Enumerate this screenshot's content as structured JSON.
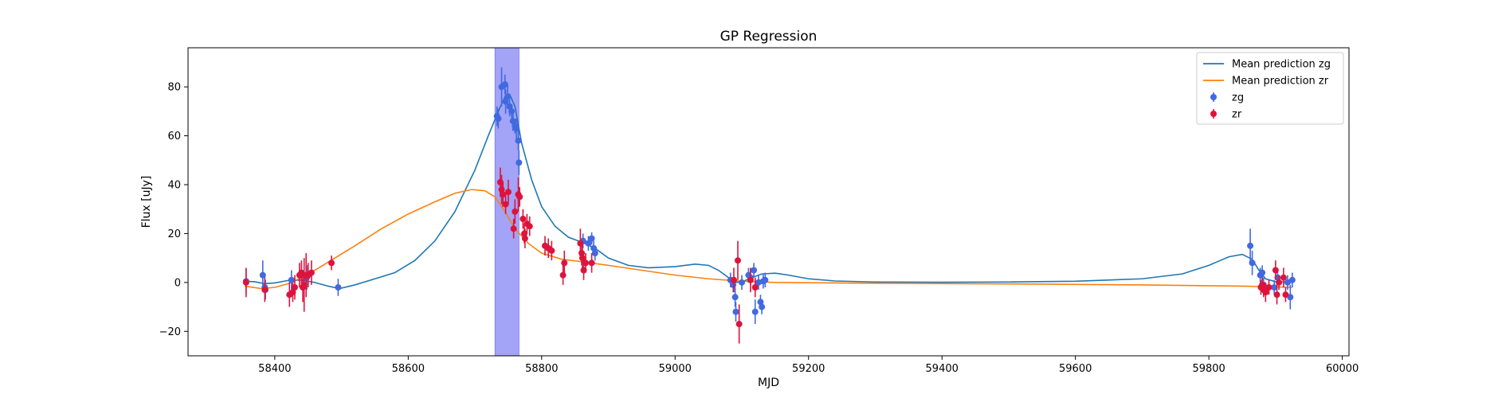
{
  "chart_data": {
    "type": "scatter",
    "title": "GP Regression",
    "xlabel": "MJD",
    "ylabel": "Flux [uJy]",
    "xlim": [
      58270,
      60010
    ],
    "ylim": [
      -30,
      96
    ],
    "xticks": [
      58400,
      58600,
      58800,
      59000,
      59200,
      59400,
      59600,
      59800,
      60000
    ],
    "yticks": [
      -20,
      0,
      20,
      40,
      60,
      80
    ],
    "grid": false,
    "legend_position": "top-right",
    "shaded_region": {
      "x0": 58730,
      "x1": 58766,
      "color": "#a3a3f7"
    },
    "series": [
      {
        "name": "Mean prediction zg",
        "kind": "line",
        "color": "#1f77b4",
        "points": [
          [
            58355,
            0.5
          ],
          [
            58370,
            0.3
          ],
          [
            58385,
            -0.5
          ],
          [
            58400,
            -0.2
          ],
          [
            58420,
            0.8
          ],
          [
            58440,
            1
          ],
          [
            58460,
            0
          ],
          [
            58480,
            -1.5
          ],
          [
            58497,
            -2.5
          ],
          [
            58520,
            -1
          ],
          [
            58550,
            1.5
          ],
          [
            58580,
            4
          ],
          [
            58610,
            9
          ],
          [
            58640,
            17
          ],
          [
            58670,
            29
          ],
          [
            58700,
            46
          ],
          [
            58720,
            60
          ],
          [
            58735,
            70
          ],
          [
            58745,
            76
          ],
          [
            58752,
            77
          ],
          [
            58760,
            72
          ],
          [
            58770,
            57
          ],
          [
            58785,
            42
          ],
          [
            58800,
            31
          ],
          [
            58820,
            23
          ],
          [
            58840,
            18.5
          ],
          [
            58860,
            16.5
          ],
          [
            58880,
            14
          ],
          [
            58900,
            10
          ],
          [
            58930,
            7
          ],
          [
            58960,
            6
          ],
          [
            59000,
            6.5
          ],
          [
            59030,
            7.5
          ],
          [
            59050,
            7
          ],
          [
            59065,
            5
          ],
          [
            59080,
            2
          ],
          [
            59090,
            0
          ],
          [
            59100,
            0.2
          ],
          [
            59115,
            2
          ],
          [
            59130,
            3.5
          ],
          [
            59150,
            3.8
          ],
          [
            59170,
            3
          ],
          [
            59200,
            1.5
          ],
          [
            59240,
            0.6
          ],
          [
            59300,
            0.2
          ],
          [
            59400,
            0.1
          ],
          [
            59500,
            0.2
          ],
          [
            59600,
            0.5
          ],
          [
            59700,
            1.5
          ],
          [
            59760,
            3.5
          ],
          [
            59800,
            7
          ],
          [
            59830,
            10.5
          ],
          [
            59850,
            11.5
          ],
          [
            59865,
            9.5
          ],
          [
            59875,
            5
          ],
          [
            59885,
            1.5
          ],
          [
            59900,
            0.3
          ],
          [
            59925,
            0
          ]
        ]
      },
      {
        "name": "Mean prediction zr",
        "kind": "line",
        "color": "#ff7f0e",
        "points": [
          [
            58355,
            -1.5
          ],
          [
            58380,
            -2.5
          ],
          [
            58400,
            -2
          ],
          [
            58420,
            -0.5
          ],
          [
            58440,
            2
          ],
          [
            58460,
            5
          ],
          [
            58490,
            10
          ],
          [
            58520,
            15
          ],
          [
            58560,
            22
          ],
          [
            58600,
            28
          ],
          [
            58640,
            33
          ],
          [
            58670,
            36.5
          ],
          [
            58695,
            38
          ],
          [
            58715,
            37.5
          ],
          [
            58730,
            35
          ],
          [
            58745,
            29
          ],
          [
            58760,
            22
          ],
          [
            58780,
            16
          ],
          [
            58800,
            12
          ],
          [
            58830,
            9.5
          ],
          [
            58860,
            8.5
          ],
          [
            58900,
            7
          ],
          [
            58950,
            5
          ],
          [
            59000,
            3
          ],
          [
            59050,
            1.5
          ],
          [
            59100,
            0.5
          ],
          [
            59150,
            0
          ],
          [
            59300,
            -0.3
          ],
          [
            59500,
            -0.6
          ],
          [
            59700,
            -1
          ],
          [
            59850,
            -1.5
          ],
          [
            59900,
            -1.8
          ],
          [
            59925,
            -2
          ]
        ]
      },
      {
        "name": "zg",
        "kind": "errorbar",
        "color": "#4169e1",
        "points": [
          [
            58357,
            0.5,
            5
          ],
          [
            58382,
            3,
            6
          ],
          [
            58385,
            -2,
            5
          ],
          [
            58386,
            -3,
            4
          ],
          [
            58425,
            1,
            4
          ],
          [
            58440,
            3,
            5
          ],
          [
            58448,
            2,
            5
          ],
          [
            58495,
            -2,
            3.5
          ],
          [
            58733,
            68,
            4
          ],
          [
            58735,
            67,
            4
          ],
          [
            58740,
            80,
            8
          ],
          [
            58745,
            81,
            4
          ],
          [
            58746,
            74,
            5
          ],
          [
            58749,
            76,
            5
          ],
          [
            58752,
            72,
            4
          ],
          [
            58755,
            70,
            3
          ],
          [
            58757,
            66,
            4
          ],
          [
            58760,
            64,
            3
          ],
          [
            58762,
            63,
            4
          ],
          [
            58765,
            58,
            4
          ],
          [
            58766,
            49,
            5
          ],
          [
            58862,
            17,
            3
          ],
          [
            58870,
            16,
            3
          ],
          [
            58875,
            18,
            2.5
          ],
          [
            58878,
            14,
            3
          ],
          [
            58880,
            12,
            3
          ],
          [
            59083,
            1,
            3
          ],
          [
            59087,
            -1,
            3
          ],
          [
            59090,
            -6,
            4
          ],
          [
            59091,
            -12,
            4
          ],
          [
            59100,
            0,
            3
          ],
          [
            59110,
            3,
            3
          ],
          [
            59113,
            2,
            3
          ],
          [
            59118,
            5,
            3
          ],
          [
            59120,
            -12,
            5
          ],
          [
            59125,
            0,
            3
          ],
          [
            59128,
            -8,
            3
          ],
          [
            59130,
            -10,
            3
          ],
          [
            59132,
            0.5,
            3
          ],
          [
            59135,
            1,
            3
          ],
          [
            59862,
            15,
            7
          ],
          [
            59865,
            8,
            5
          ],
          [
            59877,
            3,
            3
          ],
          [
            59880,
            4,
            3
          ],
          [
            59882,
            -1,
            3
          ],
          [
            59898,
            -2,
            3
          ],
          [
            59903,
            2,
            3
          ],
          [
            59918,
            0,
            3
          ],
          [
            59922,
            -6,
            5
          ],
          [
            59925,
            1,
            3
          ]
        ]
      },
      {
        "name": "zr",
        "kind": "errorbar",
        "color": "#dc143c",
        "points": [
          [
            58357,
            0,
            6
          ],
          [
            58385,
            -3,
            5
          ],
          [
            58422,
            -5,
            5
          ],
          [
            58427,
            -4,
            4
          ],
          [
            58430,
            -2,
            5
          ],
          [
            58437,
            3,
            5
          ],
          [
            58440,
            4,
            5
          ],
          [
            58442,
            -2,
            6
          ],
          [
            58444,
            -1,
            11
          ],
          [
            58447,
            3,
            9
          ],
          [
            58450,
            3,
            5
          ],
          [
            58455,
            4,
            5
          ],
          [
            58485,
            8,
            3
          ],
          [
            58738,
            41,
            6
          ],
          [
            58740,
            38,
            6
          ],
          [
            58742,
            36,
            5
          ],
          [
            58746,
            32,
            4
          ],
          [
            58750,
            37,
            5
          ],
          [
            58758,
            22,
            4
          ],
          [
            58760,
            29,
            5
          ],
          [
            58765,
            36,
            7
          ],
          [
            58767,
            35,
            4
          ],
          [
            58772,
            26,
            4
          ],
          [
            58774,
            20,
            4
          ],
          [
            58775,
            18,
            4
          ],
          [
            58778,
            24,
            4
          ],
          [
            58782,
            23,
            4
          ],
          [
            58805,
            15,
            4
          ],
          [
            58810,
            14,
            4
          ],
          [
            58815,
            13,
            4
          ],
          [
            58832,
            3,
            4
          ],
          [
            58834,
            8,
            5
          ],
          [
            58858,
            16,
            6
          ],
          [
            58860,
            12,
            5
          ],
          [
            58861,
            10,
            5
          ],
          [
            58863,
            5,
            4
          ],
          [
            58866,
            8,
            4
          ],
          [
            58875,
            8,
            4
          ],
          [
            59088,
            1,
            5
          ],
          [
            59094,
            9,
            8
          ],
          [
            59096,
            -17,
            8
          ],
          [
            59113,
            1,
            5
          ],
          [
            59120,
            -2,
            4
          ],
          [
            59878,
            -2,
            3
          ],
          [
            59880,
            -1,
            3
          ],
          [
            59882,
            -3,
            3
          ],
          [
            59885,
            -4,
            4
          ],
          [
            59890,
            -2,
            3
          ],
          [
            59900,
            5,
            4
          ],
          [
            59902,
            -5,
            4
          ],
          [
            59905,
            0,
            3
          ],
          [
            59912,
            2,
            4
          ],
          [
            59915,
            -5,
            3
          ]
        ]
      }
    ]
  }
}
